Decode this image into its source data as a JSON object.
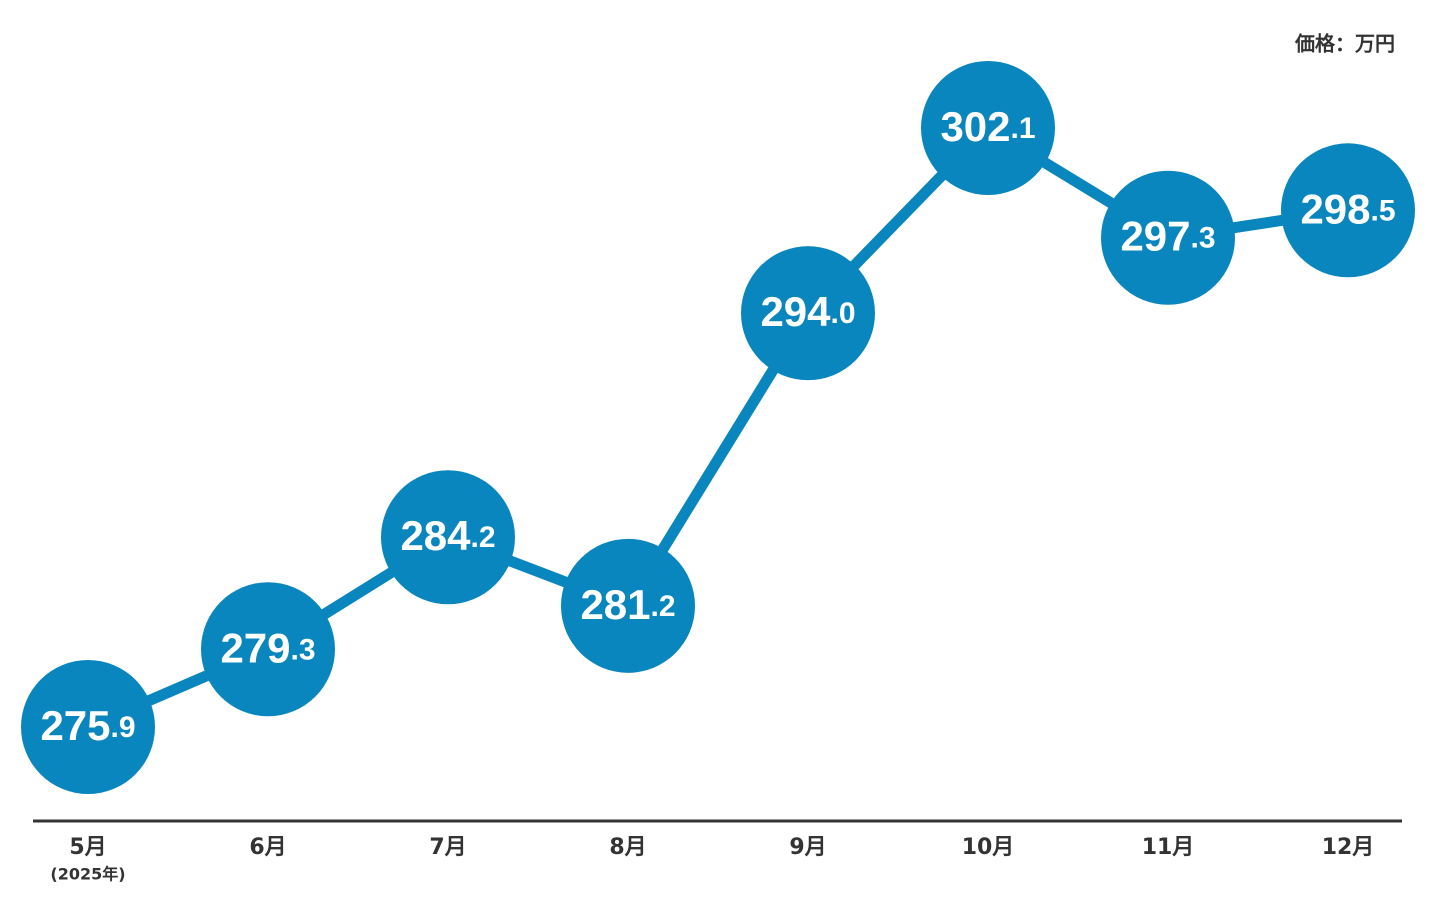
{
  "chart_data": {
    "type": "line",
    "unit_label": "価格：万円",
    "categories": [
      "5月",
      "6月",
      "7月",
      "8月",
      "9月",
      "10月",
      "11月",
      "12月"
    ],
    "category_note": "(2025年)",
    "values": [
      275.9,
      279.3,
      284.2,
      281.2,
      294.0,
      302.1,
      297.3,
      298.5
    ],
    "value_labels": [
      "275.9",
      "279.3",
      "284.2",
      "281.2",
      "294.0",
      "302.1",
      "297.3",
      "298.5"
    ],
    "color": "#0a86bf"
  }
}
